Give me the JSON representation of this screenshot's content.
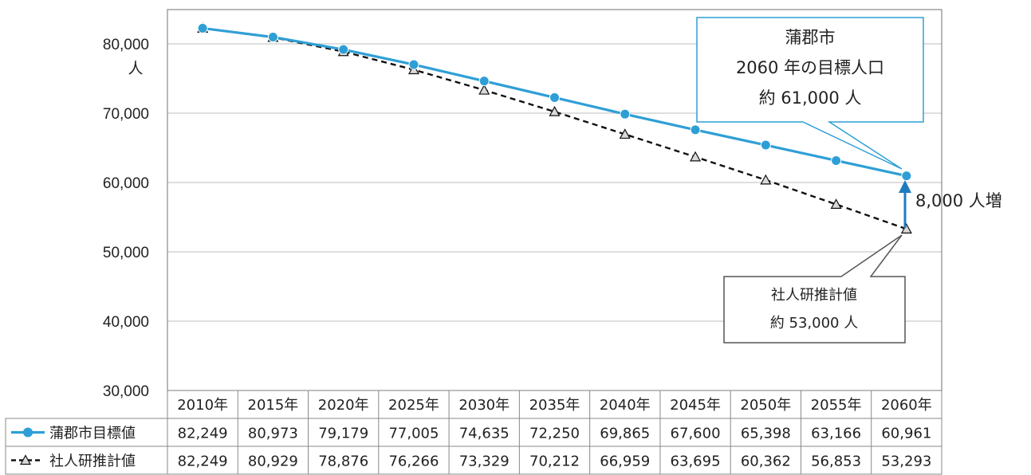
{
  "chart_data": {
    "type": "line",
    "title": "",
    "xlabel": "",
    "ylabel": "人",
    "ylim": [
      30000,
      85000
    ],
    "yticks": [
      "80,000",
      "70,000",
      "60,000",
      "50,000",
      "40,000",
      "30,000"
    ],
    "ytick_values": [
      80000,
      70000,
      60000,
      50000,
      40000,
      30000
    ],
    "grid": true,
    "categories": [
      "2010年",
      "2015年",
      "2020年",
      "2025年",
      "2030年",
      "2035年",
      "2040年",
      "2045年",
      "2050年",
      "2055年",
      "2060年"
    ],
    "series": [
      {
        "name": "蒲郡市目標値",
        "marker": "circle",
        "style": "solid",
        "color": "#2e9fd6",
        "values": [
          82249,
          80973,
          79179,
          77005,
          74635,
          72250,
          69865,
          67600,
          65398,
          63166,
          60961
        ],
        "display": [
          "82,249",
          "80,973",
          "79,179",
          "77,005",
          "74,635",
          "72,250",
          "69,865",
          "67,600",
          "65,398",
          "63,166",
          "60,961"
        ]
      },
      {
        "name": "社人研推計値",
        "marker": "triangle",
        "style": "dashed",
        "color": "#111111",
        "values": [
          82249,
          80929,
          78876,
          76266,
          73329,
          70212,
          66959,
          63695,
          60362,
          56853,
          53293
        ],
        "display": [
          "82,249",
          "80,929",
          "78,876",
          "76,266",
          "73,329",
          "70,212",
          "66,959",
          "63,695",
          "60,362",
          "56,853",
          "53,293"
        ]
      }
    ],
    "annotations": {
      "target_callout": [
        "蒲郡市",
        "2060 年の目標人口",
        "約 61,000 人"
      ],
      "projection_callout": [
        "社人研推計値",
        "約 53,000 人"
      ],
      "difference_label": "8,000 人増"
    }
  }
}
